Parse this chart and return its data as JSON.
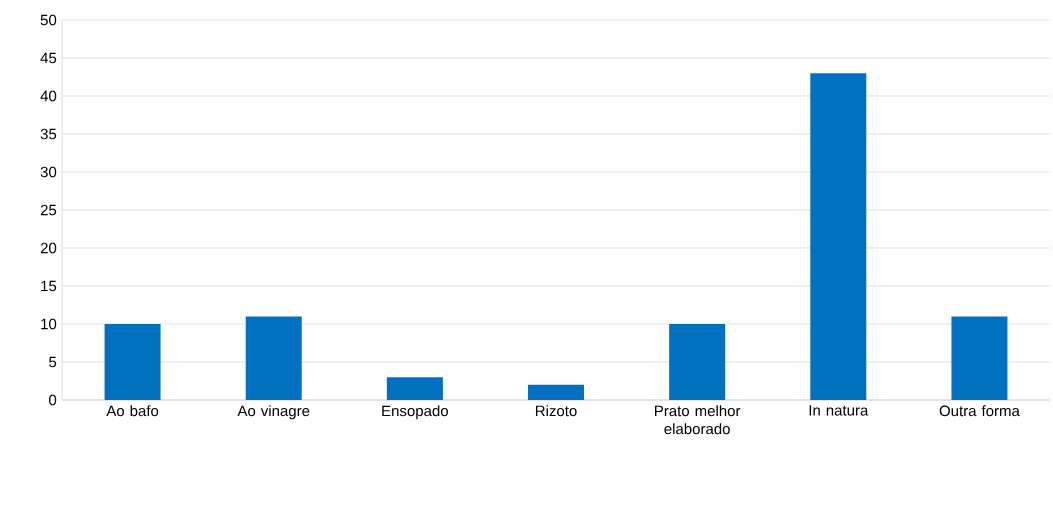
{
  "chart_data": {
    "type": "bar",
    "categories": [
      "Ao bafo",
      "Ao vinagre",
      "Ensopado",
      "Rizoto",
      "Prato melhor elaborado",
      "In natura",
      "Outra forma"
    ],
    "values": [
      10,
      11,
      3,
      2,
      10,
      43,
      11
    ],
    "color": "#0070c0",
    "ylim": [
      0,
      50
    ],
    "yticks": [
      0,
      5,
      10,
      15,
      20,
      25,
      30,
      35,
      40,
      45,
      50
    ],
    "grid": "y"
  }
}
